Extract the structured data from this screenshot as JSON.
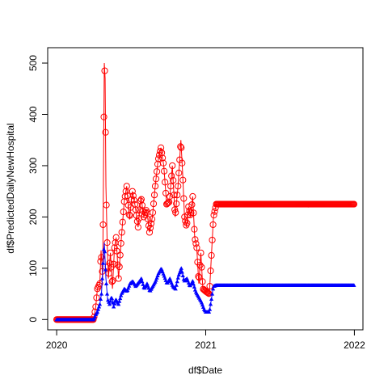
{
  "chart_data": {
    "type": "line",
    "xlabel": "df$Date",
    "ylabel": "df$PredictedDailyNewHospital",
    "xlim": [
      "2019-12-10",
      "2022-01-22"
    ],
    "ylim": [
      -20,
      530
    ],
    "x_ticks": [
      {
        "date": "2020-01-01",
        "label": "2020"
      },
      {
        "date": "2021-01-01",
        "label": "2021"
      },
      {
        "date": "2022-01-01",
        "label": "2022"
      }
    ],
    "y_ticks": [
      0,
      100,
      200,
      300,
      400,
      500
    ],
    "series": [
      {
        "color": "#ff0000",
        "marker": "open-circle",
        "points": [
          [
            "2020-01-01",
            0
          ],
          [
            "2020-04-01",
            0
          ],
          [
            "2020-04-06",
            25
          ],
          [
            "2020-04-10",
            60
          ],
          [
            "2020-04-16",
            70
          ],
          [
            "2020-04-19",
            135
          ],
          [
            "2020-04-23",
            80
          ],
          [
            "2020-04-27",
            500
          ],
          [
            "2020-04-29",
            470
          ],
          [
            "2020-05-01",
            260
          ],
          [
            "2020-05-04",
            150
          ],
          [
            "2020-05-07",
            80
          ],
          [
            "2020-05-12",
            130
          ],
          [
            "2020-05-17",
            60
          ],
          [
            "2020-05-22",
            140
          ],
          [
            "2020-05-26",
            160
          ],
          [
            "2020-06-01",
            80
          ],
          [
            "2020-06-08",
            160
          ],
          [
            "2020-06-15",
            230
          ],
          [
            "2020-06-21",
            260
          ],
          [
            "2020-06-28",
            195
          ],
          [
            "2020-07-05",
            250
          ],
          [
            "2020-07-12",
            220
          ],
          [
            "2020-07-19",
            180
          ],
          [
            "2020-07-26",
            240
          ],
          [
            "2020-08-02",
            200
          ],
          [
            "2020-08-09",
            215
          ],
          [
            "2020-08-16",
            170
          ],
          [
            "2020-08-23",
            200
          ],
          [
            "2020-08-30",
            260
          ],
          [
            "2020-09-06",
            310
          ],
          [
            "2020-09-13",
            335
          ],
          [
            "2020-09-20",
            300
          ],
          [
            "2020-09-27",
            225
          ],
          [
            "2020-10-04",
            230
          ],
          [
            "2020-10-11",
            300
          ],
          [
            "2020-10-18",
            200
          ],
          [
            "2020-10-25",
            260
          ],
          [
            "2020-11-01",
            350
          ],
          [
            "2020-11-05",
            290
          ],
          [
            "2020-11-10",
            200
          ],
          [
            "2020-11-15",
            180
          ],
          [
            "2020-11-20",
            220
          ],
          [
            "2020-11-25",
            200
          ],
          [
            "2020-11-30",
            240
          ],
          [
            "2020-12-05",
            160
          ],
          [
            "2020-12-10",
            140
          ],
          [
            "2020-12-15",
            70
          ],
          [
            "2020-12-20",
            130
          ],
          [
            "2020-12-25",
            60
          ],
          [
            "2021-01-01",
            55
          ],
          [
            "2021-01-10",
            50
          ],
          [
            "2021-01-20",
            200
          ],
          [
            "2021-01-27",
            225
          ],
          [
            "2022-01-01",
            225
          ]
        ]
      },
      {
        "color": "#0000ff",
        "marker": "filled-triangle",
        "points": [
          [
            "2020-01-01",
            0
          ],
          [
            "2020-04-01",
            0
          ],
          [
            "2020-04-06",
            10
          ],
          [
            "2020-04-10",
            15
          ],
          [
            "2020-04-16",
            30
          ],
          [
            "2020-04-20",
            50
          ],
          [
            "2020-04-24",
            110
          ],
          [
            "2020-04-27",
            150
          ],
          [
            "2020-05-01",
            80
          ],
          [
            "2020-05-05",
            40
          ],
          [
            "2020-05-10",
            30
          ],
          [
            "2020-05-15",
            45
          ],
          [
            "2020-05-20",
            25
          ],
          [
            "2020-05-25",
            40
          ],
          [
            "2020-06-01",
            30
          ],
          [
            "2020-06-08",
            50
          ],
          [
            "2020-06-15",
            60
          ],
          [
            "2020-06-22",
            55
          ],
          [
            "2020-06-29",
            70
          ],
          [
            "2020-07-06",
            75
          ],
          [
            "2020-07-13",
            65
          ],
          [
            "2020-07-20",
            72
          ],
          [
            "2020-07-27",
            80
          ],
          [
            "2020-08-03",
            60
          ],
          [
            "2020-08-10",
            70
          ],
          [
            "2020-08-17",
            55
          ],
          [
            "2020-08-24",
            65
          ],
          [
            "2020-08-31",
            75
          ],
          [
            "2020-09-07",
            90
          ],
          [
            "2020-09-14",
            100
          ],
          [
            "2020-09-21",
            85
          ],
          [
            "2020-09-28",
            70
          ],
          [
            "2020-10-05",
            80
          ],
          [
            "2020-10-12",
            65
          ],
          [
            "2020-10-19",
            60
          ],
          [
            "2020-10-26",
            85
          ],
          [
            "2020-11-02",
            100
          ],
          [
            "2020-11-09",
            75
          ],
          [
            "2020-11-16",
            80
          ],
          [
            "2020-11-23",
            65
          ],
          [
            "2020-11-30",
            75
          ],
          [
            "2020-12-07",
            55
          ],
          [
            "2020-12-14",
            45
          ],
          [
            "2020-12-21",
            35
          ],
          [
            "2020-12-28",
            20
          ],
          [
            "2021-01-01",
            15
          ],
          [
            "2021-01-10",
            15
          ],
          [
            "2021-01-20",
            65
          ],
          [
            "2021-01-27",
            67
          ],
          [
            "2022-01-01",
            67
          ]
        ]
      }
    ]
  }
}
